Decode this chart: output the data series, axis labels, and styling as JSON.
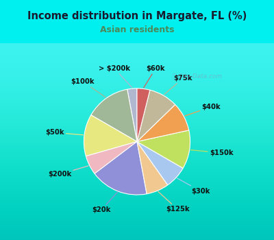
{
  "title": "Income distribution in Margate, FL (%)",
  "subtitle": "Asian residents",
  "title_color": "#1a1a2e",
  "subtitle_color": "#4a8a5a",
  "bg_cyan": "#00f0f0",
  "bg_inner_top": "#c8ece0",
  "bg_inner_bottom": "#e8f8f0",
  "labels": [
    "> $200k",
    "$100k",
    "$50k",
    "$200k",
    "$20k",
    "$125k",
    "$30k",
    "$150k",
    "$40k",
    "$75k",
    "$60k"
  ],
  "values": [
    3,
    14,
    13,
    6,
    18,
    7,
    7,
    12,
    9,
    9,
    4
  ],
  "colors": [
    "#b0b8d0",
    "#a0b898",
    "#e8e880",
    "#f0b8c0",
    "#9090d8",
    "#f0c890",
    "#a8c8f0",
    "#c0e060",
    "#f0a050",
    "#c0b898",
    "#d06060"
  ],
  "startangle": 90,
  "figsize": [
    4.0,
    3.5
  ],
  "dpi": 100
}
